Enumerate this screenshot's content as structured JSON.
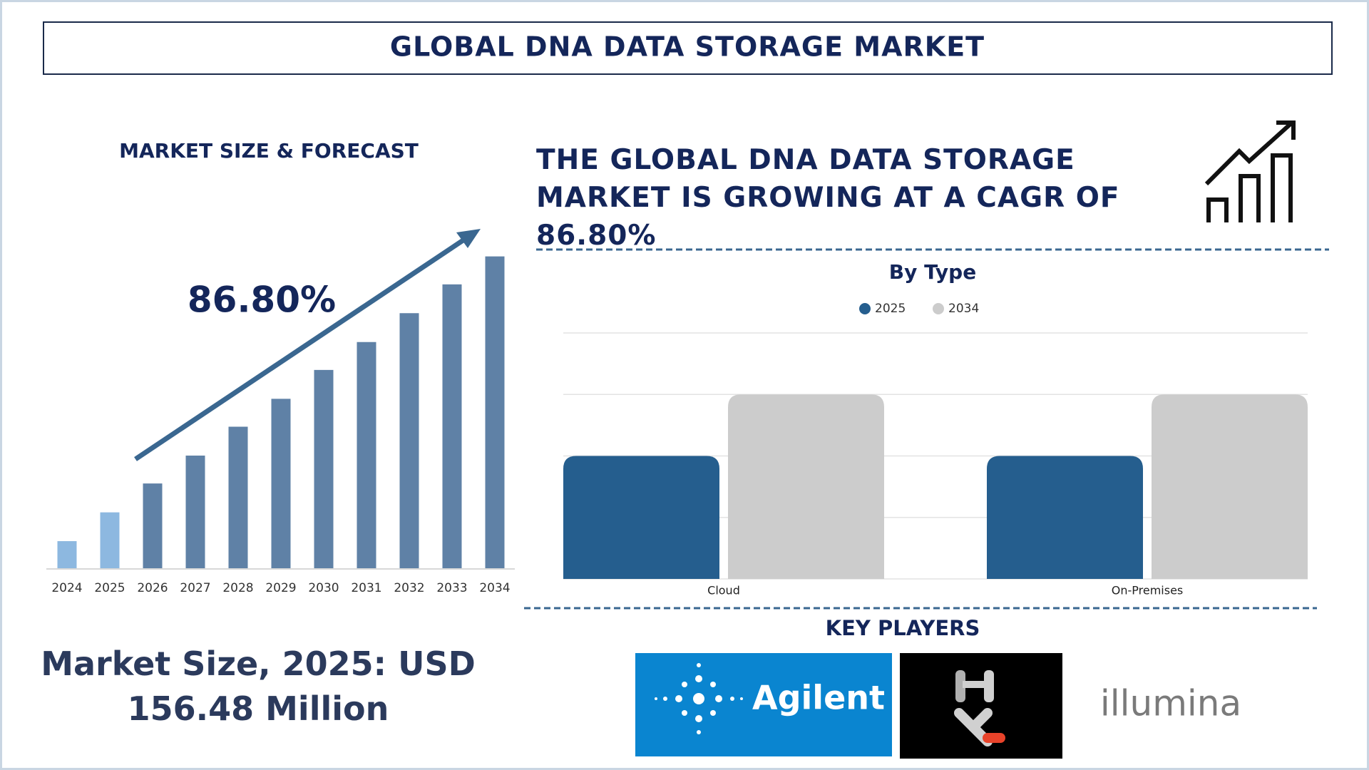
{
  "header": {
    "title": "GLOBAL DNA DATA STORAGE MARKET"
  },
  "chart_data": [
    {
      "type": "bar",
      "title": "MARKET SIZE & FORECAST",
      "annotation": "86.80%",
      "categories": [
        "2024",
        "2025",
        "2026",
        "2027",
        "2028",
        "2029",
        "2030",
        "2031",
        "2032",
        "2033",
        "2034"
      ],
      "values": [
        31,
        64,
        97,
        129,
        162,
        194,
        227,
        259,
        292,
        325,
        357
      ],
      "colors": [
        "#8db8e0",
        "#8db8e0",
        "#5f81a6",
        "#5f81a6",
        "#5f81a6",
        "#5f81a6",
        "#5f81a6",
        "#5f81a6",
        "#5f81a6",
        "#5f81a6",
        "#5f81a6"
      ],
      "ylim": [
        0,
        360
      ]
    },
    {
      "type": "bar",
      "title": "By Type",
      "categories": [
        "Cloud",
        "On-Premises"
      ],
      "series": [
        {
          "name": "2025",
          "color": "#255e8e",
          "values": [
            2,
            2
          ]
        },
        {
          "name": "2034",
          "color": "#cccccc",
          "values": [
            3,
            3
          ]
        }
      ],
      "ylim": [
        0,
        4
      ],
      "yticks": [
        0,
        1,
        2,
        3,
        4
      ],
      "grid": true,
      "tick_labels": false,
      "legend": "top"
    }
  ],
  "headline": "THE GLOBAL DNA DATA STORAGE MARKET IS GROWING AT A CAGR OF 86.80%",
  "market_size": "Market Size, 2025: USD 156.48 Million",
  "key_players": {
    "title": "KEY PLAYERS",
    "logos": [
      "Agilent",
      "illumina"
    ]
  }
}
